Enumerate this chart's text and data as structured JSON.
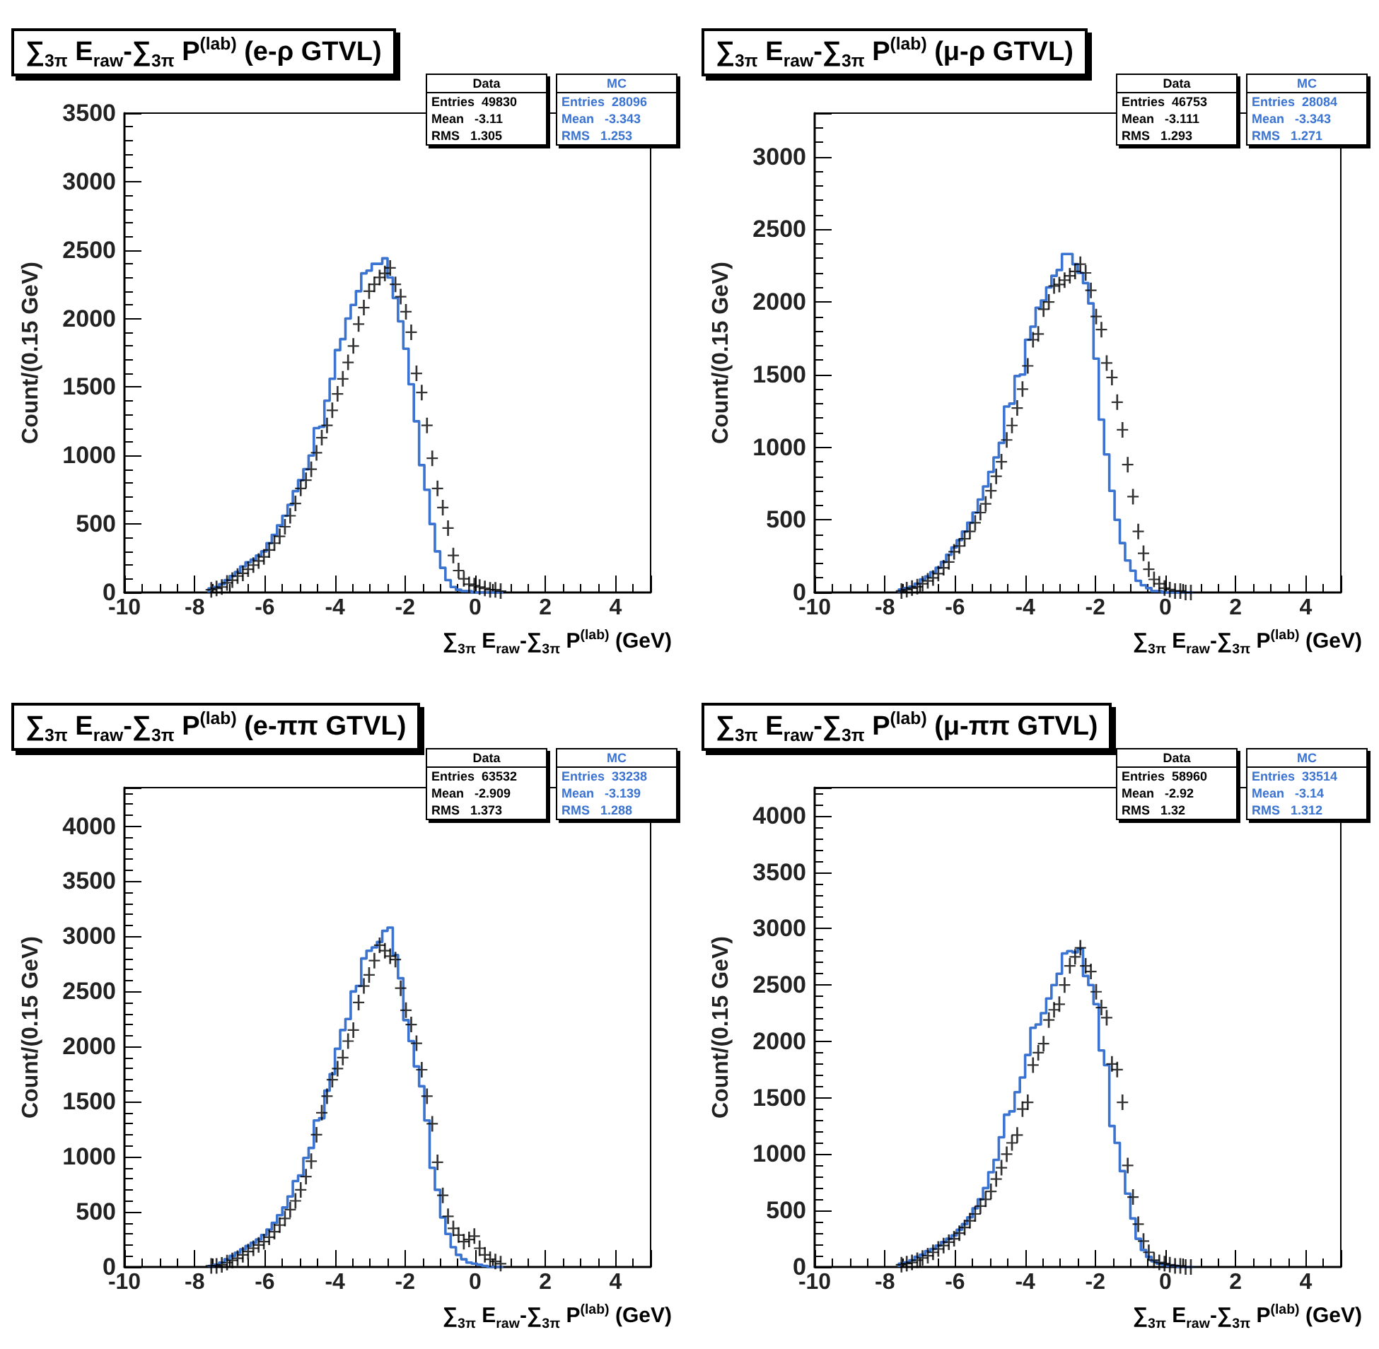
{
  "chart_data": [
    {
      "type": "histogram",
      "title": "∑$_{3π}$ E$_{raw}$-∑$_{3π}$ P$^{(lab)}$  (e-ρ GTVL)",
      "xlabel": "∑$_{3π}$ E$_{raw}$-∑$_{3π}$ P$^{(lab)}$ (GeV)",
      "ylabel": "Count/(0.15 GeV)",
      "bins": [
        -7.6,
        -7.45,
        -7.3,
        -7.15,
        -7.0,
        -6.85,
        -6.7,
        -6.55,
        -6.4,
        -6.25,
        -6.1,
        -5.95,
        -5.8,
        -5.65,
        -5.5,
        -5.35,
        -5.2,
        -5.05,
        -4.9,
        -4.75,
        -4.6,
        -4.45,
        -4.3,
        -4.15,
        -4.0,
        -3.85,
        -3.7,
        -3.55,
        -3.4,
        -3.25,
        -3.1,
        -2.95,
        -2.8,
        -2.65,
        -2.5,
        -2.35,
        -2.2,
        -2.05,
        -1.9,
        -1.75,
        -1.6,
        -1.45,
        -1.3,
        -1.15,
        -1.0,
        -0.85,
        -0.7,
        -0.55,
        -0.4,
        -0.25,
        -0.1,
        0.05,
        0.2,
        0.35,
        0.5,
        0.65,
        0.8
      ],
      "series": [
        {
          "name": "Data",
          "type": "scatter",
          "color": "#000000",
          "x": [
            -7.525,
            -7.375,
            -7.225,
            -7.075,
            -6.925,
            -6.775,
            -6.625,
            -6.475,
            -6.325,
            -6.175,
            -6.025,
            -5.875,
            -5.725,
            -5.575,
            -5.425,
            -5.275,
            -5.125,
            -4.975,
            -4.825,
            -4.675,
            -4.525,
            -4.375,
            -4.225,
            -4.075,
            -3.925,
            -3.775,
            -3.625,
            -3.475,
            -3.325,
            -3.175,
            -3.025,
            -2.875,
            -2.725,
            -2.575,
            -2.425,
            -2.275,
            -2.125,
            -1.975,
            -1.825,
            -1.675,
            -1.525,
            -1.375,
            -1.225,
            -1.075,
            -0.925,
            -0.775,
            -0.625,
            -0.475,
            -0.325,
            -0.175,
            -0.025,
            0.125,
            0.275,
            0.425,
            0.575,
            0.725
          ],
          "values": [
            20,
            30,
            40,
            70,
            90,
            120,
            140,
            170,
            200,
            230,
            260,
            310,
            360,
            410,
            480,
            560,
            650,
            760,
            820,
            900,
            1020,
            1130,
            1220,
            1330,
            1450,
            1560,
            1680,
            1800,
            1960,
            2080,
            2200,
            2250,
            2300,
            2330,
            2370,
            2250,
            2160,
            2050,
            1900,
            1600,
            1460,
            1220,
            980,
            760,
            620,
            470,
            270,
            160,
            100,
            60,
            50,
            40,
            30,
            20,
            20,
            10
          ]
        },
        {
          "name": "MC",
          "type": "histogram",
          "color": "#3b73d1",
          "values": [
            30,
            40,
            60,
            90,
            120,
            150,
            190,
            220,
            240,
            270,
            300,
            360,
            420,
            490,
            560,
            640,
            740,
            820,
            900,
            1000,
            1200,
            1210,
            1400,
            1560,
            1770,
            1850,
            2000,
            2100,
            2200,
            2330,
            2350,
            2400,
            2400,
            2440,
            2300,
            2150,
            1980,
            1780,
            1520,
            1250,
            930,
            750,
            500,
            300,
            180,
            90,
            40,
            20,
            10,
            10,
            0,
            0,
            0,
            0,
            0,
            0
          ]
        }
      ],
      "annotations": [
        "Entries  49830",
        "Mean   -3.11",
        "RMS   1.305",
        "Entries  28096",
        "Mean   -3.343",
        "RMS   1.253"
      ],
      "xlim": [
        -10,
        5
      ],
      "xticks": [
        -10,
        -8,
        -6,
        -4,
        -2,
        0,
        2,
        4
      ],
      "ylim": [
        0,
        3500
      ],
      "yticks": [
        0,
        500,
        1000,
        1500,
        2000,
        2500,
        3000,
        3500
      ],
      "marker": "cross",
      "legend": "top right"
    },
    {
      "type": "histogram",
      "title": "∑$_{3π}$ E$_{raw}$-∑$_{3π}$ P$^{(lab)}$  (μ-ρ GTVL)",
      "xlabel": "∑$_{3π}$ E$_{raw}$-∑$_{3π}$ P$^{(lab)}$ (GeV)",
      "ylabel": "Count/(0.15 GeV)",
      "bins": [
        -7.6,
        -7.45,
        -7.3,
        -7.15,
        -7.0,
        -6.85,
        -6.7,
        -6.55,
        -6.4,
        -6.25,
        -6.1,
        -5.95,
        -5.8,
        -5.65,
        -5.5,
        -5.35,
        -5.2,
        -5.05,
        -4.9,
        -4.75,
        -4.6,
        -4.45,
        -4.3,
        -4.15,
        -4.0,
        -3.85,
        -3.7,
        -3.55,
        -3.4,
        -3.25,
        -3.1,
        -2.95,
        -2.8,
        -2.65,
        -2.5,
        -2.35,
        -2.2,
        -2.05,
        -1.9,
        -1.75,
        -1.6,
        -1.45,
        -1.3,
        -1.15,
        -1.0,
        -0.85,
        -0.7,
        -0.55,
        -0.4,
        -0.25,
        -0.1,
        0.05,
        0.2,
        0.35,
        0.5,
        0.65,
        0.8
      ],
      "series": [
        {
          "name": "Data",
          "type": "scatter",
          "color": "#000000",
          "x": [
            -7.525,
            -7.375,
            -7.225,
            -7.075,
            -6.925,
            -6.775,
            -6.625,
            -6.475,
            -6.325,
            -6.175,
            -6.025,
            -5.875,
            -5.725,
            -5.575,
            -5.425,
            -5.275,
            -5.125,
            -4.975,
            -4.825,
            -4.675,
            -4.525,
            -4.375,
            -4.225,
            -4.075,
            -3.925,
            -3.775,
            -3.625,
            -3.475,
            -3.325,
            -3.175,
            -3.025,
            -2.875,
            -2.725,
            -2.575,
            -2.425,
            -2.275,
            -2.125,
            -1.975,
            -1.825,
            -1.675,
            -1.525,
            -1.375,
            -1.225,
            -1.075,
            -0.925,
            -0.775,
            -0.625,
            -0.475,
            -0.325,
            -0.175,
            -0.025,
            0.125,
            0.275,
            0.425,
            0.575,
            0.725
          ],
          "values": [
            10,
            20,
            30,
            40,
            60,
            80,
            100,
            130,
            170,
            210,
            280,
            320,
            370,
            420,
            480,
            550,
            610,
            700,
            800,
            900,
            1050,
            1150,
            1270,
            1400,
            1560,
            1740,
            1780,
            1950,
            2000,
            2110,
            2120,
            2150,
            2180,
            2210,
            2260,
            2200,
            2080,
            1900,
            1810,
            1580,
            1480,
            1310,
            1120,
            880,
            660,
            420,
            270,
            160,
            90,
            60,
            30,
            20,
            10,
            10,
            0,
            0
          ]
        },
        {
          "name": "MC",
          "type": "histogram",
          "color": "#3b73d1",
          "values": [
            20,
            30,
            40,
            60,
            90,
            110,
            140,
            170,
            210,
            260,
            310,
            360,
            420,
            480,
            550,
            640,
            730,
            830,
            930,
            1030,
            1280,
            1300,
            1490,
            1500,
            1740,
            1830,
            1960,
            2010,
            2100,
            2180,
            2220,
            2330,
            2330,
            2260,
            2200,
            2130,
            1990,
            1610,
            1190,
            950,
            700,
            500,
            340,
            220,
            150,
            80,
            50,
            30,
            10,
            10,
            0,
            0,
            0,
            0,
            0,
            0
          ]
        }
      ],
      "annotations": [
        "Entries  46753",
        "Mean   -3.111",
        "RMS   1.293",
        "Entries  28084",
        "Mean   -3.343",
        "RMS   1.271"
      ],
      "xlim": [
        -10,
        5
      ],
      "xticks": [
        -10,
        -8,
        -6,
        -4,
        -2,
        0,
        2,
        4
      ],
      "ylim": [
        0,
        3300
      ],
      "yticks": [
        0,
        500,
        1000,
        1500,
        2000,
        2500,
        3000
      ],
      "marker": "cross",
      "legend": "top right"
    },
    {
      "type": "histogram",
      "title": "∑$_{3π}$ E$_{raw}$-∑$_{3π}$ P$^{(lab)}$  (e-ππ GTVL)",
      "xlabel": "∑$_{3π}$ E$_{raw}$-∑$_{3π}$ P$^{(lab)}$ (GeV)",
      "ylabel": "Count/(0.15 GeV)",
      "bins": [
        -7.6,
        -7.45,
        -7.3,
        -7.15,
        -7.0,
        -6.85,
        -6.7,
        -6.55,
        -6.4,
        -6.25,
        -6.1,
        -5.95,
        -5.8,
        -5.65,
        -5.5,
        -5.35,
        -5.2,
        -5.05,
        -4.9,
        -4.75,
        -4.6,
        -4.45,
        -4.3,
        -4.15,
        -4.0,
        -3.85,
        -3.7,
        -3.55,
        -3.4,
        -3.25,
        -3.1,
        -2.95,
        -2.8,
        -2.65,
        -2.5,
        -2.35,
        -2.2,
        -2.05,
        -1.9,
        -1.75,
        -1.6,
        -1.45,
        -1.3,
        -1.15,
        -1.0,
        -0.85,
        -0.7,
        -0.55,
        -0.4,
        -0.25,
        -0.1,
        0.05,
        0.2,
        0.35,
        0.5,
        0.65,
        0.8
      ],
      "series": [
        {
          "name": "Data",
          "type": "scatter",
          "color": "#000000",
          "x": [
            -7.525,
            -7.375,
            -7.225,
            -7.075,
            -6.925,
            -6.775,
            -6.625,
            -6.475,
            -6.325,
            -6.175,
            -6.025,
            -5.875,
            -5.725,
            -5.575,
            -5.425,
            -5.275,
            -5.125,
            -4.975,
            -4.825,
            -4.675,
            -4.525,
            -4.375,
            -4.225,
            -4.075,
            -3.925,
            -3.775,
            -3.625,
            -3.475,
            -3.325,
            -3.175,
            -3.025,
            -2.875,
            -2.725,
            -2.575,
            -2.425,
            -2.275,
            -2.125,
            -1.975,
            -1.825,
            -1.675,
            -1.525,
            -1.375,
            -1.225,
            -1.075,
            -0.925,
            -0.775,
            -0.625,
            -0.475,
            -0.325,
            -0.175,
            -0.025,
            0.125,
            0.275,
            0.425,
            0.575,
            0.725
          ],
          "values": [
            10,
            10,
            20,
            40,
            60,
            80,
            110,
            140,
            170,
            200,
            230,
            270,
            320,
            380,
            440,
            520,
            600,
            700,
            820,
            960,
            1200,
            1400,
            1550,
            1700,
            1800,
            1900,
            2050,
            2150,
            2400,
            2550,
            2650,
            2780,
            2920,
            2870,
            2820,
            2790,
            2530,
            2330,
            2200,
            2030,
            1790,
            1550,
            1300,
            950,
            650,
            460,
            350,
            290,
            230,
            250,
            280,
            170,
            110,
            70,
            50,
            30
          ]
        },
        {
          "name": "MC",
          "type": "histogram",
          "color": "#3b73d1",
          "values": [
            10,
            20,
            40,
            70,
            100,
            130,
            160,
            190,
            220,
            250,
            290,
            340,
            400,
            470,
            540,
            640,
            780,
            830,
            990,
            1080,
            1330,
            1350,
            1600,
            1750,
            1980,
            2150,
            2250,
            2500,
            2550,
            2800,
            2870,
            2900,
            2950,
            3050,
            3080,
            2830,
            2620,
            2240,
            2050,
            1820,
            1640,
            1330,
            900,
            700,
            450,
            300,
            180,
            110,
            70,
            40,
            30,
            20,
            10,
            0,
            0,
            0
          ]
        }
      ],
      "annotations": [
        "Entries  63532",
        "Mean   -2.909",
        "RMS   1.373",
        "Entries  33238",
        "Mean   -3.139",
        "RMS   1.288"
      ],
      "xlim": [
        -10,
        5
      ],
      "xticks": [
        -10,
        -8,
        -6,
        -4,
        -2,
        0,
        2,
        4
      ],
      "ylim": [
        0,
        4350
      ],
      "yticks": [
        0,
        500,
        1000,
        1500,
        2000,
        2500,
        3000,
        3500,
        4000
      ],
      "marker": "cross",
      "legend": "top right"
    },
    {
      "type": "histogram",
      "title": "∑$_{3π}$ E$_{raw}$-∑$_{3π}$ P$^{(lab)}$  (μ-ππ GTVL)",
      "xlabel": "∑$_{3π}$ E$_{raw}$-∑$_{3π}$ P$^{(lab)}$ (GeV)",
      "ylabel": "Count/(0.15 GeV)",
      "bins": [
        -7.6,
        -7.45,
        -7.3,
        -7.15,
        -7.0,
        -6.85,
        -6.7,
        -6.55,
        -6.4,
        -6.25,
        -6.1,
        -5.95,
        -5.8,
        -5.65,
        -5.5,
        -5.35,
        -5.2,
        -5.05,
        -4.9,
        -4.75,
        -4.6,
        -4.45,
        -4.3,
        -4.15,
        -4.0,
        -3.85,
        -3.7,
        -3.55,
        -3.4,
        -3.25,
        -3.1,
        -2.95,
        -2.8,
        -2.65,
        -2.5,
        -2.35,
        -2.2,
        -2.05,
        -1.9,
        -1.75,
        -1.6,
        -1.45,
        -1.3,
        -1.15,
        -1.0,
        -0.85,
        -0.7,
        -0.55,
        -0.4,
        -0.25,
        -0.1,
        0.05,
        0.2,
        0.35,
        0.5,
        0.65,
        0.8
      ],
      "series": [
        {
          "name": "Data",
          "type": "scatter",
          "color": "#000000",
          "x": [
            -7.525,
            -7.375,
            -7.225,
            -7.075,
            -6.925,
            -6.775,
            -6.625,
            -6.475,
            -6.325,
            -6.175,
            -6.025,
            -5.875,
            -5.725,
            -5.575,
            -5.425,
            -5.275,
            -5.125,
            -4.975,
            -4.825,
            -4.675,
            -4.525,
            -4.375,
            -4.225,
            -4.075,
            -3.925,
            -3.775,
            -3.625,
            -3.475,
            -3.325,
            -3.175,
            -3.025,
            -2.875,
            -2.725,
            -2.575,
            -2.425,
            -2.275,
            -2.125,
            -1.975,
            -1.825,
            -1.675,
            -1.525,
            -1.375,
            -1.225,
            -1.075,
            -0.925,
            -0.775,
            -0.625,
            -0.475,
            -0.325,
            -0.175,
            -0.025,
            0.125,
            0.275,
            0.425,
            0.575,
            0.725
          ],
          "values": [
            20,
            30,
            40,
            60,
            80,
            100,
            130,
            160,
            190,
            220,
            250,
            300,
            350,
            410,
            470,
            540,
            600,
            670,
            780,
            880,
            1000,
            1100,
            1170,
            1400,
            1460,
            1790,
            1900,
            1980,
            2190,
            2280,
            2330,
            2500,
            2670,
            2750,
            2830,
            2670,
            2620,
            2440,
            2300,
            2210,
            1800,
            1750,
            1460,
            900,
            620,
            380,
            230,
            130,
            60,
            40,
            30,
            20,
            10,
            10,
            0,
            0
          ]
        },
        {
          "name": "MC",
          "type": "histogram",
          "color": "#3b73d1",
          "values": [
            30,
            40,
            60,
            90,
            110,
            140,
            160,
            190,
            220,
            250,
            280,
            330,
            380,
            440,
            520,
            600,
            700,
            840,
            950,
            1150,
            1350,
            1380,
            1550,
            1680,
            1880,
            2120,
            2150,
            2250,
            2380,
            2500,
            2600,
            2780,
            2800,
            2790,
            2820,
            2580,
            2500,
            2330,
            1920,
            1790,
            1250,
            1100,
            850,
            650,
            430,
            250,
            150,
            90,
            50,
            30,
            20,
            10,
            10,
            0,
            0,
            0
          ]
        }
      ],
      "annotations": [
        "Entries  58960",
        "Mean   -2.92",
        "RMS   1.32",
        "Entries  33514",
        "Mean   -3.14",
        "RMS   1.312"
      ],
      "xlim": [
        -10,
        5
      ],
      "xticks": [
        -10,
        -8,
        -6,
        -4,
        -2,
        0,
        2,
        4
      ],
      "ylim": [
        0,
        4250
      ],
      "yticks": [
        0,
        500,
        1000,
        1500,
        2000,
        2500,
        3000,
        3500,
        4000
      ],
      "marker": "cross",
      "legend": "top right"
    }
  ]
}
